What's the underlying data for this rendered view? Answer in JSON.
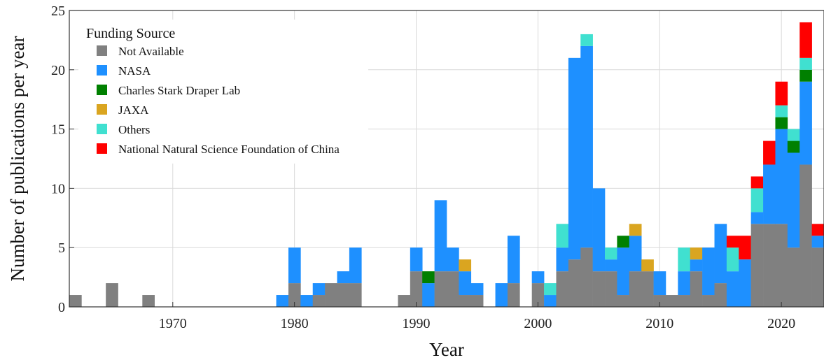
{
  "chart_data": {
    "type": "bar",
    "stacked": true,
    "xlabel": "Year",
    "ylabel": "Number of publications per year",
    "xlim": [
      1961.5,
      2023.5
    ],
    "ylim": [
      0,
      25
    ],
    "x_ticks": [
      1970,
      1980,
      1990,
      2000,
      2010,
      2020
    ],
    "y_ticks": [
      0,
      5,
      10,
      15,
      20,
      25
    ],
    "grid": true,
    "legend": {
      "title": "Funding Source",
      "placement": "top-left"
    },
    "x": [
      1962,
      1965,
      1968,
      1979,
      1980,
      1981,
      1982,
      1983,
      1984,
      1985,
      1989,
      1990,
      1991,
      1992,
      1993,
      1994,
      1995,
      1997,
      1998,
      2000,
      2001,
      2002,
      2003,
      2004,
      2005,
      2006,
      2007,
      2008,
      2009,
      2010,
      2011,
      2012,
      2013,
      2014,
      2015,
      2016,
      2017,
      2018,
      2019,
      2020,
      2021,
      2022,
      2023
    ],
    "series": [
      {
        "name": "Not Available",
        "color": "#808080",
        "values": [
          1,
          2,
          1,
          0,
          2,
          0,
          1,
          2,
          2,
          2,
          1,
          3,
          0,
          3,
          3,
          1,
          1,
          0,
          2,
          2,
          0,
          3,
          4,
          5,
          3,
          3,
          1,
          3,
          3,
          1,
          1,
          1,
          3,
          1,
          2,
          0,
          0,
          7,
          7,
          7,
          5,
          12,
          5
        ]
      },
      {
        "name": "NASA",
        "color": "#1E90FF",
        "values": [
          0,
          0,
          0,
          1,
          3,
          1,
          1,
          0,
          1,
          3,
          0,
          2,
          2,
          6,
          2,
          2,
          1,
          2,
          4,
          1,
          1,
          2,
          17,
          17,
          7,
          1,
          4,
          3,
          0,
          2,
          0,
          2,
          1,
          4,
          5,
          3,
          4,
          1,
          5,
          8,
          8,
          7,
          1
        ]
      },
      {
        "name": "Charles Stark Draper Lab",
        "color": "#008000",
        "values": [
          0,
          0,
          0,
          0,
          0,
          0,
          0,
          0,
          0,
          0,
          0,
          0,
          1,
          0,
          0,
          0,
          0,
          0,
          0,
          0,
          0,
          0,
          0,
          0,
          0,
          0,
          1,
          0,
          0,
          0,
          0,
          0,
          0,
          0,
          0,
          0,
          0,
          0,
          0,
          1,
          1,
          1,
          0
        ]
      },
      {
        "name": "JAXA",
        "color": "#DAA520",
        "values": [
          0,
          0,
          0,
          0,
          0,
          0,
          0,
          0,
          0,
          0,
          0,
          0,
          0,
          0,
          0,
          1,
          0,
          0,
          0,
          0,
          0,
          0,
          0,
          0,
          0,
          0,
          0,
          1,
          1,
          0,
          0,
          0,
          1,
          0,
          0,
          0,
          0,
          0,
          0,
          0,
          0,
          0,
          0
        ]
      },
      {
        "name": "Others",
        "color": "#40E0D0",
        "values": [
          0,
          0,
          0,
          0,
          0,
          0,
          0,
          0,
          0,
          0,
          0,
          0,
          0,
          0,
          0,
          0,
          0,
          0,
          0,
          0,
          1,
          2,
          0,
          1,
          0,
          1,
          0,
          0,
          0,
          0,
          0,
          2,
          0,
          0,
          0,
          2,
          0,
          2,
          0,
          1,
          1,
          1,
          0
        ]
      },
      {
        "name": "National Natural Science Foundation of China",
        "color": "#FF0000",
        "values": [
          0,
          0,
          0,
          0,
          0,
          0,
          0,
          0,
          0,
          0,
          0,
          0,
          0,
          0,
          0,
          0,
          0,
          0,
          0,
          0,
          0,
          0,
          0,
          0,
          0,
          0,
          0,
          0,
          0,
          0,
          0,
          0,
          0,
          0,
          0,
          1,
          2,
          1,
          2,
          2,
          0,
          3,
          1
        ]
      }
    ]
  }
}
